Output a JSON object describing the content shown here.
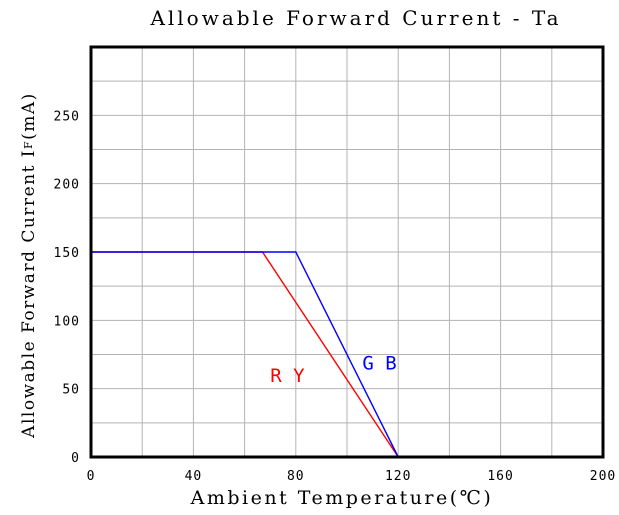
{
  "chart_data": {
    "type": "line",
    "title": "Allowable Forward Current - Ta",
    "xlabel": "Ambient Temperature(℃)",
    "ylabel": "Allowable Forward Current I",
    "ylabel_subscript": "F",
    "ylabel_suffix": "(mA)",
    "xlim": [
      0,
      200
    ],
    "ylim": [
      0,
      300
    ],
    "xticks": [
      0,
      40,
      80,
      120,
      160,
      200
    ],
    "yticks": [
      0,
      50,
      100,
      150,
      200,
      250
    ],
    "grid": true,
    "series": [
      {
        "name": "R Y",
        "color": "#ff0000",
        "points": [
          [
            0,
            150
          ],
          [
            67,
            150
          ],
          [
            120,
            0
          ]
        ],
        "label_at": [
          70,
          55
        ]
      },
      {
        "name": "G B",
        "color": "#0000ff",
        "points": [
          [
            0,
            150
          ],
          [
            80,
            150
          ],
          [
            120,
            0
          ]
        ],
        "label_at": [
          106,
          64
        ]
      }
    ]
  }
}
